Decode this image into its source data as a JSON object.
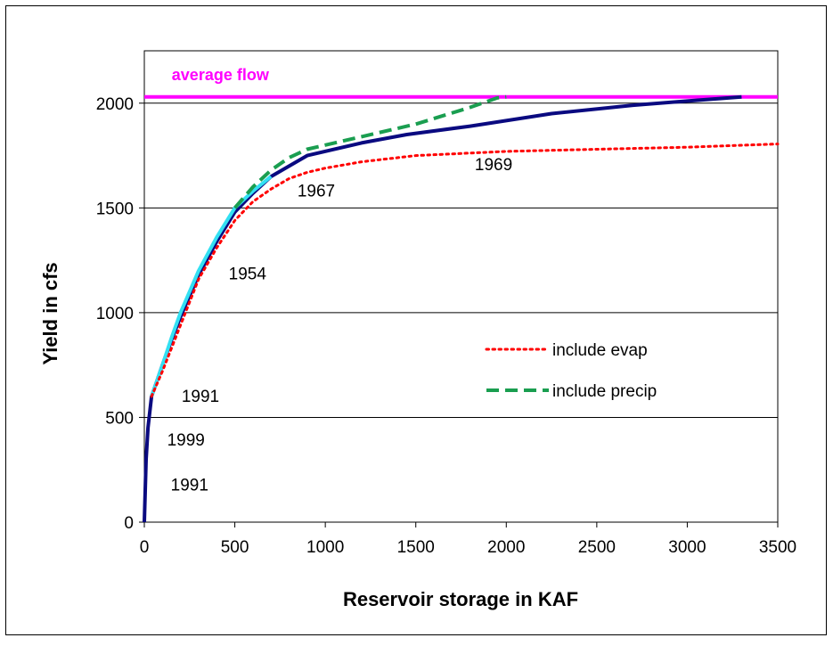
{
  "chart_data": {
    "type": "line",
    "title": "",
    "xlabel": "Reservoir storage in KAF",
    "ylabel": "Yield in cfs",
    "xlim": [
      0,
      3500
    ],
    "ylim": [
      0,
      2250
    ],
    "x_ticks": [
      0,
      500,
      1000,
      1500,
      2000,
      2500,
      3000,
      3500
    ],
    "y_ticks": [
      0,
      500,
      1000,
      1500,
      2000
    ],
    "grid": "horizontal",
    "legend_position": "center-right",
    "series": [
      {
        "name": "average flow",
        "color": "#ff00ff",
        "style": "solid",
        "x": [
          0,
          3500
        ],
        "y": [
          2030,
          2030
        ]
      },
      {
        "key": "base",
        "color": "#0a0a80",
        "style": "solid",
        "x": [
          0,
          5,
          10,
          20,
          40,
          60,
          100,
          150,
          200,
          300,
          400,
          500,
          600,
          700,
          900,
          1200,
          1450,
          1800,
          2250,
          2700,
          3000,
          3300
        ],
        "y": [
          0,
          150,
          300,
          450,
          600,
          650,
          750,
          870,
          980,
          1180,
          1340,
          1480,
          1570,
          1650,
          1750,
          1810,
          1850,
          1890,
          1950,
          1990,
          2010,
          2030
        ]
      },
      {
        "key": "overlap",
        "color": "#33e0f2",
        "style": "solid",
        "x": [
          40,
          60,
          100,
          150,
          200,
          300,
          400,
          500,
          600,
          700
        ],
        "y": [
          600,
          650,
          750,
          880,
          1000,
          1200,
          1360,
          1500,
          1580,
          1650
        ]
      },
      {
        "name": "include evap",
        "color": "#ff0000",
        "style": "dotted",
        "x": [
          40,
          100,
          200,
          300,
          400,
          500,
          600,
          700,
          800,
          900,
          1000,
          1200,
          1500,
          2000,
          2500,
          3000,
          3500
        ],
        "y": [
          600,
          720,
          940,
          1160,
          1310,
          1440,
          1530,
          1590,
          1640,
          1670,
          1690,
          1720,
          1750,
          1770,
          1780,
          1790,
          1805
        ]
      },
      {
        "name": "include precip",
        "color": "#1a9e50",
        "style": "dashed",
        "x": [
          500,
          600,
          700,
          800,
          900,
          1000,
          1200,
          1500,
          1800,
          1950,
          2000
        ],
        "y": [
          1500,
          1600,
          1680,
          1740,
          1780,
          1800,
          1840,
          1900,
          1980,
          2025,
          2030
        ]
      }
    ],
    "annotations": [
      {
        "text": "average flow",
        "x": 420,
        "y": 2110,
        "color": "#ff00ff",
        "bold": true
      },
      {
        "text": "1969",
        "x": 1930,
        "y": 1680
      },
      {
        "text": "1967",
        "x": 950,
        "y": 1555
      },
      {
        "text": "1954",
        "x": 570,
        "y": 1160
      },
      {
        "text": "1991",
        "x": 310,
        "y": 575
      },
      {
        "text": "1999",
        "x": 230,
        "y": 365
      },
      {
        "text": "1991",
        "x": 250,
        "y": 150
      }
    ]
  }
}
